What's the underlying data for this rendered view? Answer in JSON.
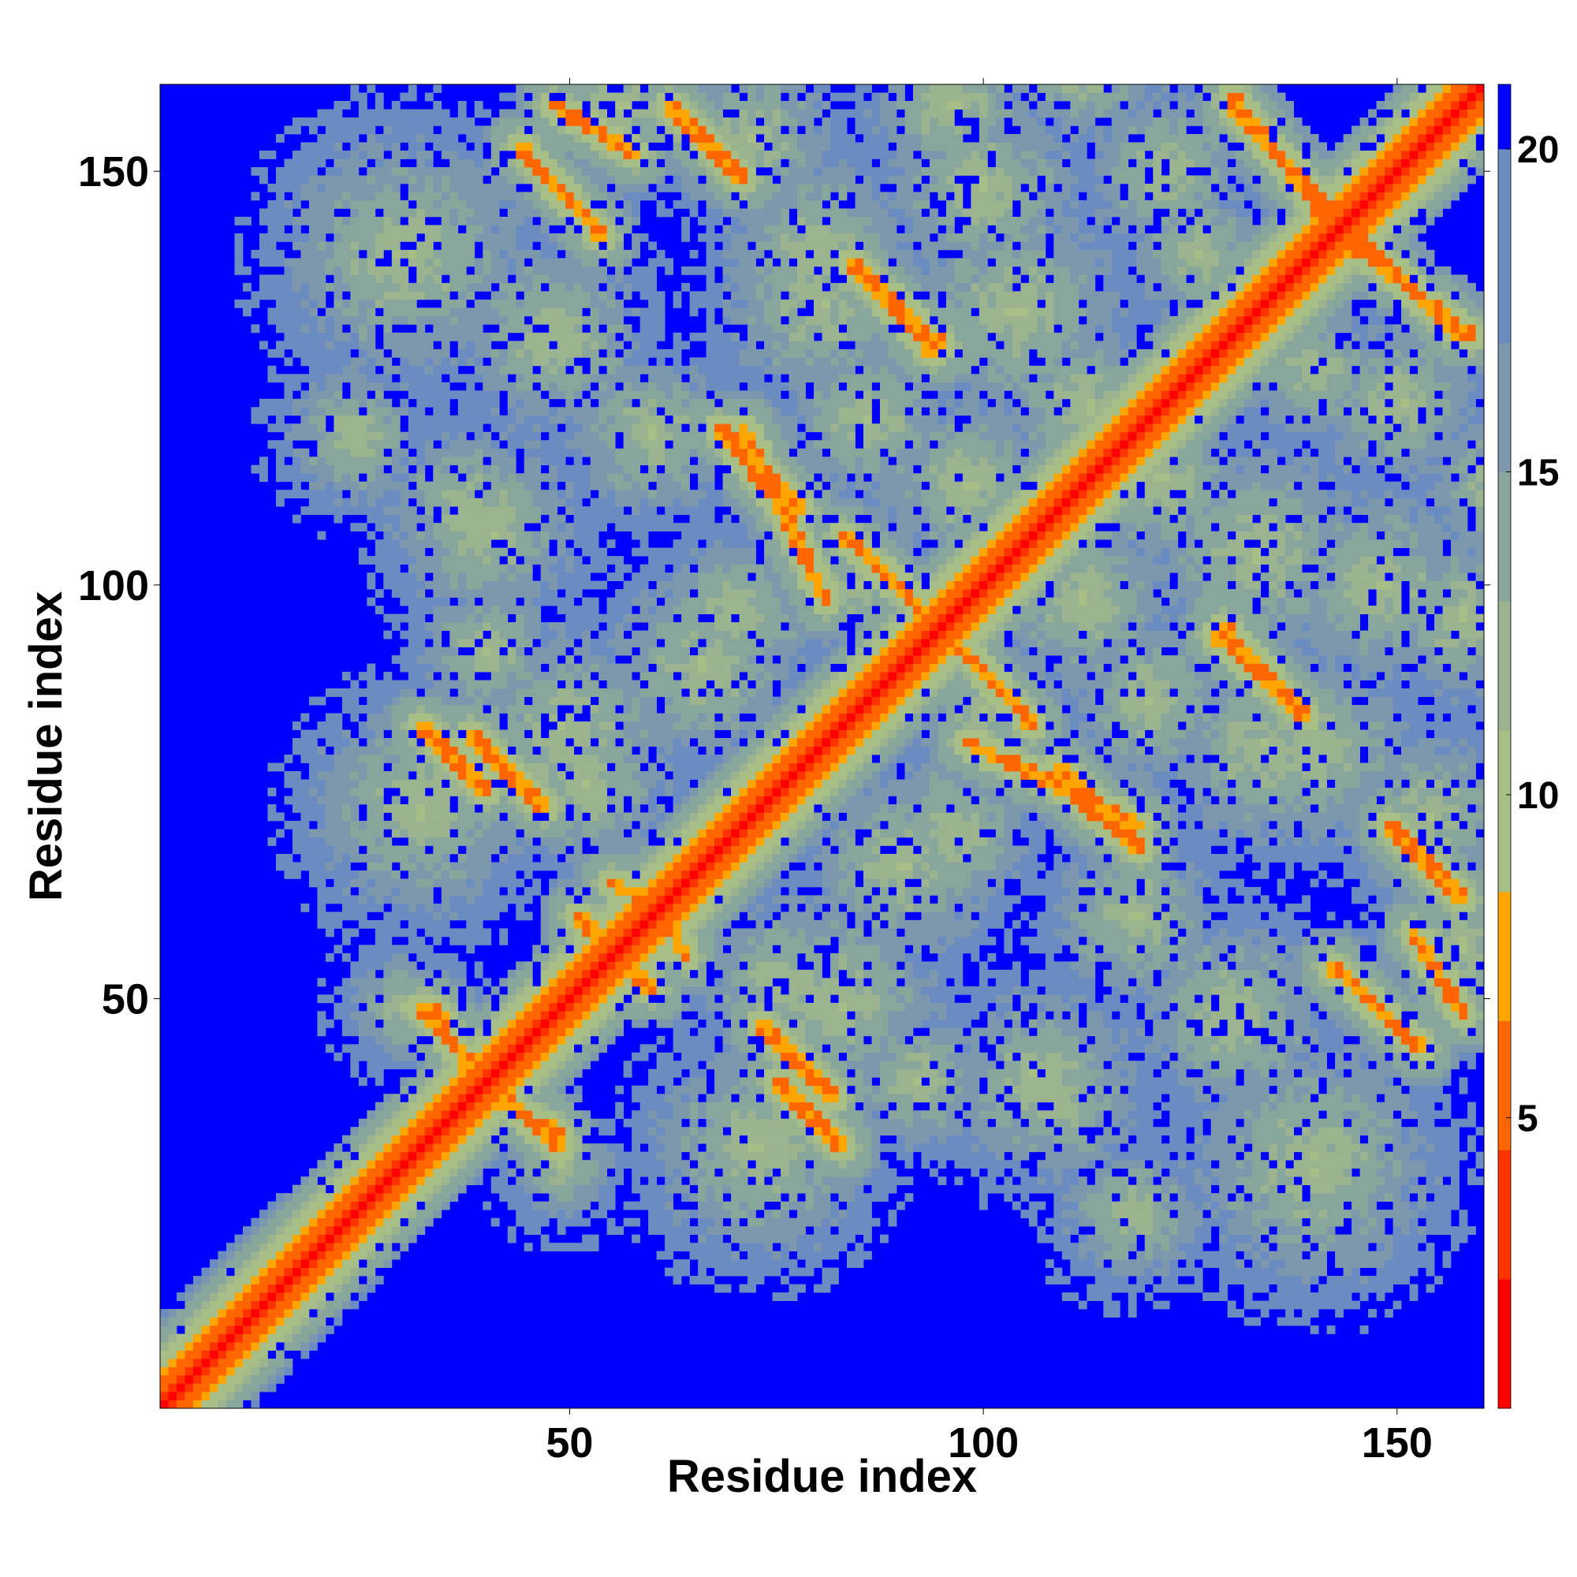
{
  "chart_data": {
    "type": "heatmap",
    "title": "",
    "xlabel": "Residue index",
    "ylabel": "Residue index",
    "xlim": [
      1,
      160
    ],
    "ylim": [
      1,
      160
    ],
    "grid": false,
    "x_ticks": [
      50,
      100,
      150
    ],
    "y_ticks": [
      50,
      100,
      150
    ],
    "colorbar": {
      "ticks": [
        5,
        10,
        15,
        20
      ],
      "range": [
        0.5,
        21
      ],
      "levels": [
        {
          "max": 2.5,
          "color": "#ff0000"
        },
        {
          "max": 4.5,
          "color": "#ff3300"
        },
        {
          "max": 6.5,
          "color": "#ff6600"
        },
        {
          "max": 8.5,
          "color": "#ffa500"
        },
        {
          "max": 11,
          "color": "#a7bf87"
        },
        {
          "max": 13,
          "color": "#9bb38f"
        },
        {
          "max": 15,
          "color": "#88a69c"
        },
        {
          "max": 17,
          "color": "#7d98ad"
        },
        {
          "max": 20,
          "color": "#6a8cc0"
        },
        {
          "max": 21,
          "color": "#0000ff"
        }
      ]
    },
    "background_value": 21,
    "map_description_values": "Symmetric residue-residue distance map: values below 8.5 near the main diagonal, anti-diagonal beta-pair stripes at low values, intermediate halos around them, background saturated at 21."
  }
}
